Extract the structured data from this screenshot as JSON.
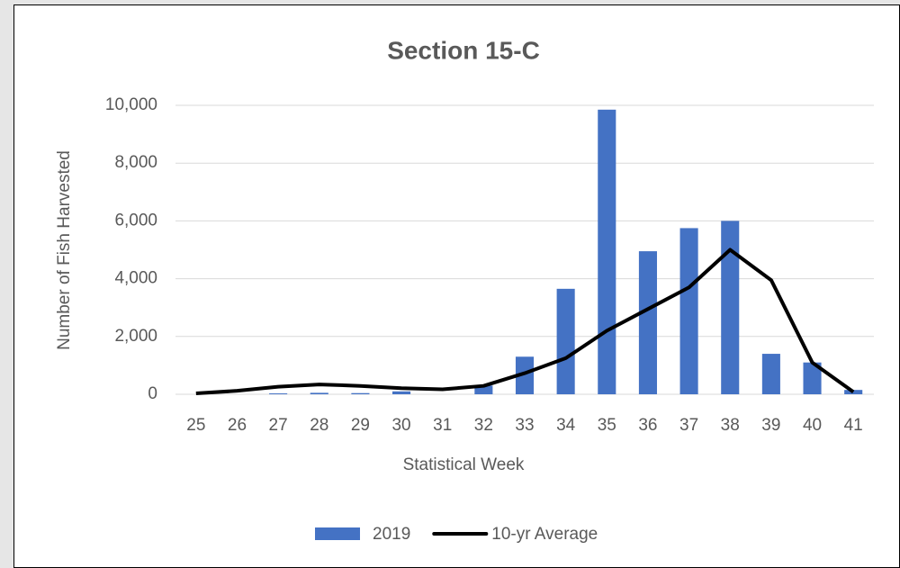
{
  "chart_data": {
    "type": "bar_line",
    "title": "Section 15-C",
    "x_label": "Statistical Week",
    "y_label": "Number of Fish Harvested",
    "categories": [
      "25",
      "26",
      "27",
      "28",
      "29",
      "30",
      "31",
      "32",
      "33",
      "34",
      "35",
      "36",
      "37",
      "38",
      "39",
      "40",
      "41"
    ],
    "series": [
      {
        "name": "2019",
        "type": "bar",
        "color": "#4472c4",
        "values": [
          0,
          0,
          30,
          50,
          40,
          100,
          0,
          300,
          1300,
          3650,
          9850,
          4950,
          5750,
          6000,
          1400,
          1100,
          150
        ]
      },
      {
        "name": "10-yr Average",
        "type": "line",
        "color": "#000000",
        "values": [
          30,
          120,
          260,
          340,
          290,
          210,
          170,
          290,
          730,
          1250,
          2200,
          2950,
          3700,
          5000,
          3950,
          1100,
          80
        ]
      }
    ],
    "ylim": [
      0,
      10000
    ],
    "yticks": [
      0,
      {
        "value": 2000,
        "label": "2,000"
      },
      {
        "value": 4000,
        "label": "4,000"
      },
      {
        "value": 6000,
        "label": "6,000"
      },
      {
        "value": 8000,
        "label": "8,000"
      },
      {
        "value": 10000,
        "label": "10,000"
      }
    ],
    "grid": true,
    "legend": "bottom"
  }
}
